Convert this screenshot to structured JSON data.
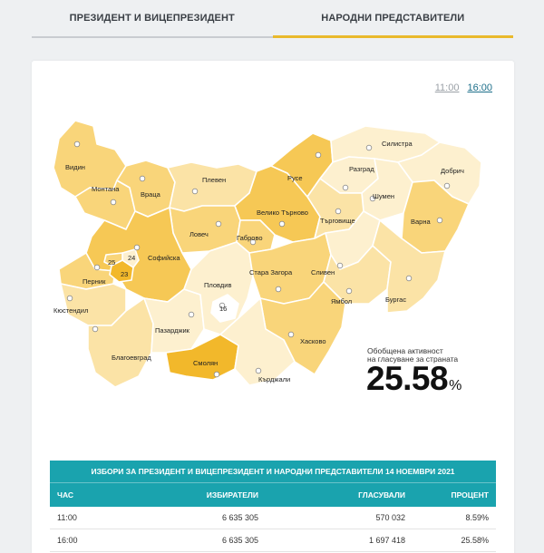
{
  "tabs": [
    {
      "label": "ПРЕЗИДЕНТ И ВИЦЕПРЕЗИДЕНТ",
      "active": false
    },
    {
      "label": "НАРОДНИ ПРЕДСТАВИТЕЛИ",
      "active": true
    }
  ],
  "time_links": [
    {
      "label": "11:00",
      "active": false
    },
    {
      "label": "16:00",
      "active": true
    }
  ],
  "map": {
    "regions": {
      "vidin": "Видин",
      "montana": "Монтана",
      "vratsa": "Враца",
      "pleven": "Плевен",
      "ruse": "Русе",
      "silistra": "Силистра",
      "razgrad": "Разград",
      "dobrich": "Добрич",
      "shumen": "Шумен",
      "targovishte": "Търговище",
      "varna": "Варна",
      "veliko_tarnovo": "Велико Търново",
      "lovech": "Ловеч",
      "gabrovo": "Габрово",
      "sofia_oblast": "Софийска",
      "pernik": "Перник",
      "kyustendil": "Кюстендил",
      "stara_zagora": "Стара Загора",
      "sliven": "Сливен",
      "yambol": "Ямбол",
      "burgas": "Бургас",
      "plovdiv": "Пловдив",
      "pazardzhik": "Пазарджик",
      "blagoevgrad": "Благоевград",
      "smolyan": "Смолян",
      "kardzhali": "Кърджали",
      "haskovo": "Хасково"
    },
    "numbers": {
      "sofia_23": "23",
      "sofia_24": "24",
      "sofia_25": "25",
      "plovdiv_city": "16"
    },
    "colors": {
      "light": "#fdf0cf",
      "mid_light": "#fbe3a6",
      "mid": "#f9d57a",
      "deep": "#f6c855",
      "strong": "#f2b82b"
    }
  },
  "activity": {
    "label_line1": "Обобщена активност",
    "label_line2": "на гласуване за страната",
    "value": "25.58",
    "unit": "%"
  },
  "table": {
    "title": "ИЗБОРИ ЗА ПРЕЗИДЕНТ И ВИЦЕПРЕЗИДЕНТ И НАРОДНИ ПРЕДСТАВИТЕЛИ 14 НОЕМВРИ 2021",
    "columns": [
      "ЧАС",
      "ИЗБИРАТЕЛИ",
      "ГЛАСУВАЛИ",
      "ПРОЦЕНТ"
    ],
    "rows": [
      [
        "11:00",
        "6 635 305",
        "570 032",
        "8.59%"
      ],
      [
        "16:00",
        "6 635 305",
        "1 697 418",
        "25.58%"
      ]
    ]
  }
}
